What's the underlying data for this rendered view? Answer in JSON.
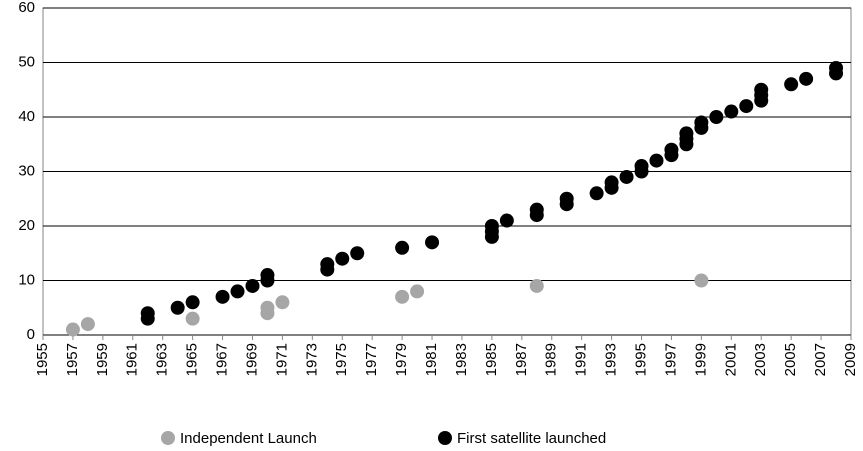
{
  "chart_data": {
    "type": "scatter",
    "xlim": [
      1955,
      2009
    ],
    "xticks": [
      1955,
      1957,
      1959,
      1961,
      1963,
      1965,
      1967,
      1969,
      1971,
      1973,
      1975,
      1977,
      1979,
      1981,
      1983,
      1985,
      1987,
      1989,
      1991,
      1993,
      1995,
      1997,
      1999,
      2001,
      2003,
      2005,
      2007,
      2009
    ],
    "ylim": [
      0,
      60
    ],
    "yticks": [
      0,
      10,
      20,
      30,
      40,
      50,
      60
    ],
    "grid": true,
    "legend": "bottom",
    "series": [
      {
        "name": "Independent Launch",
        "color": "#a6a6a6",
        "x": [
          1957,
          1958,
          1965,
          1970,
          1970,
          1971,
          1979,
          1980,
          1988,
          1999
        ],
        "values": [
          1,
          2,
          3,
          4,
          5,
          6,
          7,
          8,
          9,
          10
        ]
      },
      {
        "name": "First satellite launched",
        "color": "#000000",
        "x": [
          1962,
          1962,
          1964,
          1965,
          1967,
          1968,
          1969,
          1970,
          1970,
          1974,
          1974,
          1975,
          1976,
          1979,
          1981,
          1985,
          1985,
          1985,
          1986,
          1988,
          1988,
          1990,
          1990,
          1992,
          1993,
          1993,
          1994,
          1995,
          1995,
          1996,
          1997,
          1997,
          1998,
          1998,
          1998,
          1999,
          1999,
          2000,
          2001,
          2002,
          2003,
          2003,
          2003,
          2005,
          2006,
          2008,
          2008
        ],
        "values": [
          3,
          4,
          5,
          6,
          7,
          8,
          9,
          10,
          11,
          12,
          13,
          14,
          15,
          16,
          17,
          18,
          19,
          20,
          21,
          22,
          23,
          24,
          25,
          26,
          27,
          28,
          29,
          30,
          31,
          32,
          33,
          34,
          35,
          36,
          37,
          38,
          39,
          40,
          41,
          42,
          43,
          44,
          45,
          46,
          47,
          48,
          49
        ]
      }
    ]
  }
}
